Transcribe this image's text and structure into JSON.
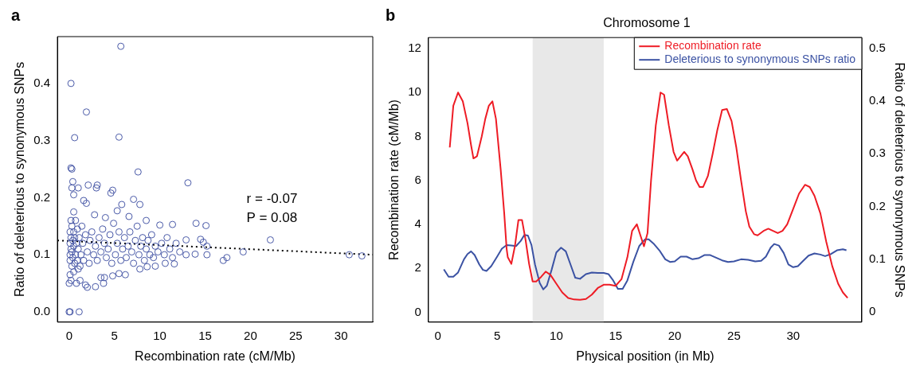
{
  "chart_data": [
    {
      "type": "scatter",
      "xlabel": "Recombination rate (cM/Mb)",
      "ylabel": "Ratio of deleterious to synonymous SNPs",
      "xlim": [
        -1.3,
        33.5
      ],
      "ylim": [
        -0.018,
        0.482
      ],
      "xticks": [
        0,
        5,
        10,
        15,
        20,
        25,
        30
      ],
      "yticks": [
        {
          "value": 0,
          "label": "0.0"
        },
        0.1,
        0.2,
        0.3,
        0.4
      ],
      "grid": false,
      "marker": "circle",
      "annotations": [
        "a",
        "r = -0.07",
        "P = 0.08"
      ],
      "series": [
        {
          "color": "#4a5aa8",
          "x": [
            5.7,
            0.2,
            1.9,
            0.6,
            5.5,
            0.2,
            0.3,
            7.6,
            13.1,
            0.4,
            2.1,
            3.1,
            3.0,
            1.0,
            0.3,
            4.8,
            4.6,
            0.5,
            7.1,
            7.8,
            5.8,
            1.6,
            1.9,
            5.3,
            6.6,
            8.5,
            10.0,
            11.4,
            14.0,
            15.1,
            4.0,
            2.8,
            0.5,
            22.2,
            19.2,
            17.0,
            17.4,
            30.9,
            32.3,
            14.5,
            14.8,
            15.2,
            15.2,
            13.9,
            12.9,
            12.9,
            11.6,
            10.6,
            9.5,
            8.6,
            7.8,
            6.2,
            5.5,
            4.8,
            3.9,
            3.5,
            2.9,
            2.0,
            1.8,
            0.8,
            0.0,
            0.2,
            1.2,
            0.0,
            0.1,
            1.1,
            0.1,
            0.5,
            1.0,
            3.8,
            0.1,
            0.1,
            0.1,
            0.1,
            0.2,
            0.2,
            0.2,
            0.3,
            0.3,
            0.3,
            0.4,
            0.4,
            0.5,
            0.5,
            0.6,
            0.6,
            0.7,
            0.7,
            0.8,
            0.9,
            0.9,
            1.0,
            1.1,
            1.2,
            1.3,
            1.4,
            1.5,
            1.6,
            1.8,
            2.0,
            2.2,
            2.3,
            2.5,
            2.7,
            2.9,
            3.1,
            3.3,
            3.5,
            3.7,
            3.9,
            4.1,
            4.3,
            4.5,
            4.7,
            4.9,
            5.1,
            5.3,
            5.5,
            5.7,
            5.9,
            6.1,
            6.3,
            6.5,
            6.7,
            6.9,
            7.1,
            7.3,
            7.5,
            7.7,
            7.9,
            8.1,
            8.3,
            8.5,
            8.7,
            8.9,
            9.1,
            9.3,
            9.5,
            9.8,
            10.2,
            10.5,
            10.8,
            11.1,
            11.4,
            11.8,
            12.2
          ],
          "values": [
            0.465,
            0.4,
            0.35,
            0.305,
            0.306,
            0.252,
            0.25,
            0.245,
            0.226,
            0.228,
            0.222,
            0.222,
            0.217,
            0.217,
            0.217,
            0.213,
            0.208,
            0.205,
            0.197,
            0.188,
            0.188,
            0.195,
            0.19,
            0.177,
            0.167,
            0.16,
            0.152,
            0.153,
            0.155,
            0.151,
            0.165,
            0.17,
            0.175,
            0.126,
            0.105,
            0.09,
            0.095,
            0.1,
            0.098,
            0.127,
            0.122,
            0.115,
            0.1,
            0.101,
            0.1,
            0.126,
            0.084,
            0.085,
            0.08,
            0.079,
            0.075,
            0.065,
            0.067,
            0.063,
            0.06,
            0.06,
            0.044,
            0.043,
            0.047,
            0.05,
            0.05,
            0.055,
            0.055,
            0.0,
            0.0,
            0.0,
            0.065,
            0.07,
            0.075,
            0.05,
            0.1,
            0.12,
            0.14,
            0.09,
            0.11,
            0.13,
            0.16,
            0.08,
            0.105,
            0.15,
            0.095,
            0.125,
            0.115,
            0.14,
            0.085,
            0.13,
            0.1,
            0.16,
            0.12,
            0.09,
            0.145,
            0.11,
            0.13,
            0.08,
            0.1,
            0.15,
            0.12,
            0.09,
            0.135,
            0.105,
            0.085,
            0.125,
            0.14,
            0.1,
            0.115,
            0.09,
            0.13,
            0.105,
            0.145,
            0.12,
            0.095,
            0.11,
            0.135,
            0.085,
            0.155,
            0.1,
            0.12,
            0.14,
            0.09,
            0.11,
            0.13,
            0.095,
            0.115,
            0.14,
            0.105,
            0.085,
            0.125,
            0.15,
            0.1,
            0.115,
            0.13,
            0.09,
            0.11,
            0.125,
            0.1,
            0.135,
            0.095,
            0.115,
            0.105,
            0.12,
            0.1,
            0.13,
            0.11,
            0.095,
            0.12,
            0.105
          ]
        },
        {
          "type": "line",
          "color": "#000000",
          "line_style": "dotted",
          "marker": "none",
          "x": [
            -1.3,
            33.5
          ],
          "values": [
            0.125,
            0.1
          ]
        }
      ]
    },
    {
      "type": "line",
      "title": "Chromosome 1",
      "xlabel": "Physical position (in Mb)",
      "ylabel": "Recombination rate (cM/Mb)",
      "y2label": "Ratio of deleterious to synonymous SNPs",
      "xlim": [
        -0.8,
        35.8
      ],
      "xticks": [
        0,
        5,
        10,
        15,
        20,
        25,
        30
      ],
      "ylim": [
        -0.45,
        12.5
      ],
      "yticks": [
        0,
        2,
        4,
        6,
        8,
        10,
        12
      ],
      "y2lim": [
        -0.019,
        0.52
      ],
      "y2ticks": [
        0,
        0.1,
        0.2,
        0.3,
        0.4,
        0.5
      ],
      "grid": false,
      "legend": "top right",
      "marker": "none",
      "annotations": [
        "b"
      ],
      "bands": [
        {
          "axis": "x",
          "from": 8,
          "to": 14,
          "color": "#e8e8e8"
        }
      ],
      "series": [
        {
          "name": "Recombination rate",
          "color": "#ee1c25",
          "x": [
            1.0,
            1.3,
            1.7,
            2.1,
            2.5,
            2.8,
            3.0,
            3.3,
            3.7,
            4.0,
            4.3,
            4.6,
            4.9,
            5.3,
            5.6,
            5.8,
            5.9,
            6.2,
            6.5,
            6.8,
            7.1,
            7.4,
            7.7,
            8.0,
            8.3,
            8.7,
            9.1,
            9.5,
            10.0,
            10.5,
            11.0,
            11.5,
            12.0,
            12.5,
            13.0,
            13.5,
            14.0,
            14.5,
            15.0,
            15.5,
            16.0,
            16.4,
            16.8,
            17.1,
            17.4,
            17.7,
            18.0,
            18.4,
            18.8,
            19.1,
            19.5,
            19.9,
            20.2,
            20.5,
            20.8,
            21.1,
            21.5,
            21.8,
            22.1,
            22.4,
            22.8,
            23.2,
            23.6,
            24.0,
            24.4,
            24.8,
            25.2,
            25.6,
            26.0,
            26.3,
            26.7,
            27.0,
            27.5,
            27.9,
            28.3,
            28.7,
            29.1,
            29.5,
            30.0,
            30.5,
            31.0,
            31.4,
            31.8,
            32.3,
            32.8,
            33.3,
            33.8,
            34.2,
            34.6
          ],
          "values": [
            7.5,
            9.4,
            10.0,
            9.6,
            8.6,
            7.6,
            7.0,
            7.1,
            8.0,
            8.8,
            9.4,
            9.6,
            8.8,
            6.5,
            4.5,
            2.9,
            2.5,
            2.2,
            3.0,
            4.2,
            4.2,
            3.3,
            2.2,
            1.4,
            1.4,
            1.6,
            1.85,
            1.7,
            1.3,
            0.9,
            0.65,
            0.58,
            0.57,
            0.6,
            0.8,
            1.1,
            1.25,
            1.25,
            1.2,
            1.5,
            2.5,
            3.7,
            4.0,
            3.5,
            3.0,
            3.6,
            6.0,
            8.5,
            10.0,
            9.9,
            8.5,
            7.3,
            6.9,
            7.1,
            7.3,
            7.1,
            6.5,
            6.0,
            5.7,
            5.7,
            6.2,
            7.2,
            8.3,
            9.2,
            9.25,
            8.7,
            7.5,
            6.0,
            4.6,
            3.9,
            3.55,
            3.5,
            3.7,
            3.8,
            3.7,
            3.6,
            3.7,
            4.0,
            4.7,
            5.4,
            5.8,
            5.7,
            5.3,
            4.5,
            3.2,
            2.1,
            1.3,
            0.9,
            0.65
          ]
        },
        {
          "name": "Deleterious to synonymous SNPs ratio",
          "color": "#3b52a3",
          "axis": "y2",
          "x": [
            0.5,
            0.9,
            1.3,
            1.7,
            2.2,
            2.5,
            2.8,
            3.1,
            3.5,
            3.8,
            4.1,
            4.5,
            5.0,
            5.4,
            5.8,
            6.2,
            6.6,
            7.0,
            7.3,
            7.6,
            7.9,
            8.2,
            8.6,
            8.9,
            9.2,
            9.6,
            10.0,
            10.4,
            10.8,
            11.2,
            11.6,
            12.0,
            12.5,
            13.0,
            13.5,
            14.0,
            14.4,
            14.8,
            15.2,
            15.6,
            16.0,
            16.5,
            17.0,
            17.5,
            17.8,
            18.2,
            18.7,
            19.2,
            19.6,
            20.0,
            20.5,
            21.0,
            21.5,
            22.0,
            22.5,
            23.0,
            23.5,
            24.0,
            24.5,
            25.0,
            25.6,
            26.2,
            26.8,
            27.3,
            27.7,
            28.1,
            28.4,
            28.8,
            29.2,
            29.6,
            30.0,
            30.4,
            30.8,
            31.3,
            31.8,
            32.3,
            32.7,
            33.2,
            33.7,
            34.2,
            34.5
          ],
          "values": [
            0.081,
            0.067,
            0.067,
            0.075,
            0.1,
            0.11,
            0.115,
            0.108,
            0.09,
            0.08,
            0.078,
            0.087,
            0.105,
            0.12,
            0.127,
            0.126,
            0.125,
            0.135,
            0.146,
            0.145,
            0.127,
            0.09,
            0.055,
            0.043,
            0.05,
            0.08,
            0.113,
            0.122,
            0.115,
            0.09,
            0.065,
            0.063,
            0.072,
            0.075,
            0.074,
            0.074,
            0.072,
            0.06,
            0.044,
            0.044,
            0.06,
            0.095,
            0.125,
            0.138,
            0.138,
            0.13,
            0.117,
            0.1,
            0.095,
            0.096,
            0.105,
            0.105,
            0.1,
            0.102,
            0.108,
            0.108,
            0.103,
            0.098,
            0.095,
            0.096,
            0.1,
            0.099,
            0.096,
            0.097,
            0.105,
            0.122,
            0.129,
            0.126,
            0.112,
            0.09,
            0.085,
            0.087,
            0.096,
            0.107,
            0.111,
            0.109,
            0.106,
            0.11,
            0.117,
            0.119,
            0.117
          ]
        }
      ]
    }
  ]
}
